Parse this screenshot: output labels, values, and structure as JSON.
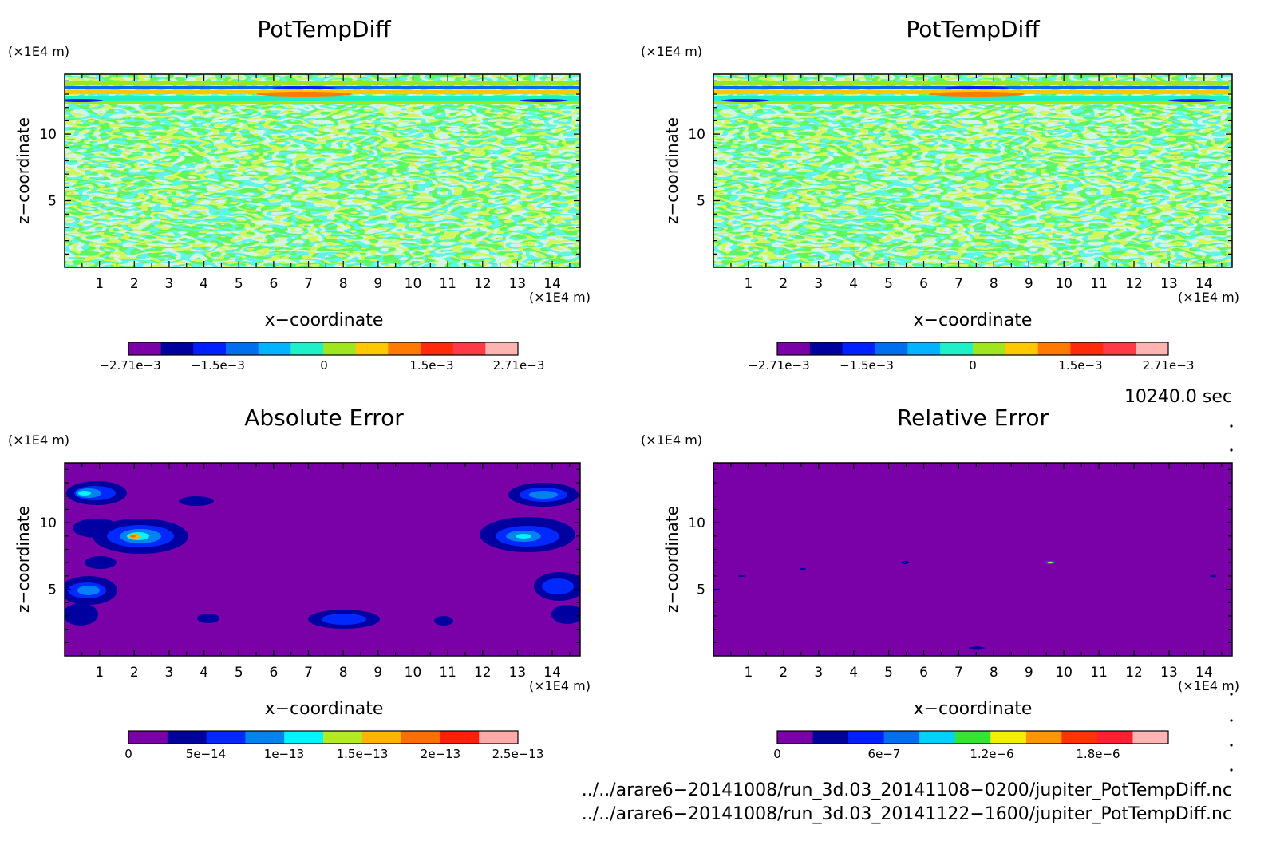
{
  "colors": {
    "field_levels": [
      "#7a00a8",
      "#00009e",
      "#0020ff",
      "#006ef0",
      "#00b4ff",
      "#1ef0c8",
      "#a0e61e",
      "#ffc800",
      "#ff7a00",
      "#ff2a0a",
      "#ff3a46",
      "#ffb4b4"
    ],
    "abs_levels": [
      "#7a00a8",
      "#0000a0",
      "#0028ff",
      "#0082f0",
      "#00f5ff",
      "#b4eb1e",
      "#ffb400",
      "#ff6e00",
      "#ff1e0a",
      "#ffaaaa"
    ],
    "rel_levels": [
      "#7a00a8",
      "#00009e",
      "#0020ff",
      "#006ef0",
      "#00d2ff",
      "#32e632",
      "#f0f000",
      "#ff9600",
      "#ff3200",
      "#ff1e32",
      "#ffb4b4"
    ]
  },
  "chart_data": [
    {
      "type": "heatmap",
      "title": "PotTempDiff",
      "xlabel": "x−coordinate",
      "ylabel": "z−coordinate",
      "x_unit": "(×1E4 m)",
      "y_unit": "(×1E4 m)",
      "x_ticks": [
        "1",
        "2",
        "3",
        "4",
        "5",
        "6",
        "7",
        "8",
        "9",
        "10",
        "11",
        "12",
        "13",
        "14"
      ],
      "y_ticks": [
        "5",
        "10"
      ],
      "xlim": [
        0,
        14.8
      ],
      "ylim": [
        0,
        14.5
      ],
      "colorbar_ticks": [
        "−2.71e−3",
        "−1.5e−3",
        "0",
        "1.5e−3",
        "2.71e−3"
      ],
      "colorbar_range": [
        -0.00271,
        0.00271
      ]
    },
    {
      "type": "heatmap",
      "title": "PotTempDiff",
      "xlabel": "x−coordinate",
      "ylabel": "z−coordinate",
      "x_unit": "(×1E4 m)",
      "y_unit": "(×1E4 m)",
      "x_ticks": [
        "1",
        "2",
        "3",
        "4",
        "5",
        "6",
        "7",
        "8",
        "9",
        "10",
        "11",
        "12",
        "13",
        "14"
      ],
      "y_ticks": [
        "5",
        "10"
      ],
      "xlim": [
        0,
        14.8
      ],
      "ylim": [
        0,
        14.5
      ],
      "colorbar_ticks": [
        "−2.71e−3",
        "−1.5e−3",
        "0",
        "1.5e−3",
        "2.71e−3"
      ],
      "colorbar_range": [
        -0.00271,
        0.00271
      ]
    },
    {
      "type": "heatmap",
      "title": "Absolute Error",
      "xlabel": "x−coordinate",
      "ylabel": "z−coordinate",
      "x_unit": "(×1E4 m)",
      "y_unit": "(×1E4 m)",
      "x_ticks": [
        "1",
        "2",
        "3",
        "4",
        "5",
        "6",
        "7",
        "8",
        "9",
        "10",
        "11",
        "12",
        "13",
        "14"
      ],
      "y_ticks": [
        "5",
        "10"
      ],
      "xlim": [
        0,
        14.8
      ],
      "ylim": [
        0,
        14.5
      ],
      "colorbar_ticks": [
        "0",
        "5e−14",
        "1e−13",
        "1.5e−13",
        "2e−13",
        "2.5e−13"
      ],
      "colorbar_range": [
        0,
        2.5e-13
      ]
    },
    {
      "type": "heatmap",
      "title": "Relative Error",
      "xlabel": "x−coordinate",
      "ylabel": "z−coordinate",
      "x_unit": "(×1E4 m)",
      "y_unit": "(×1E4 m)",
      "x_ticks": [
        "1",
        "2",
        "3",
        "4",
        "5",
        "6",
        "7",
        "8",
        "9",
        "10",
        "11",
        "12",
        "13",
        "14"
      ],
      "y_ticks": [
        "5",
        "10"
      ],
      "xlim": [
        0,
        14.8
      ],
      "ylim": [
        0,
        14.5
      ],
      "colorbar_ticks": [
        "0",
        "6e−7",
        "1.2e−6",
        "1.8e−6"
      ],
      "colorbar_range": [
        0,
        2.2e-06
      ]
    }
  ],
  "time_label": "10240.0 sec",
  "file_paths": [
    "../../arare6−20141008/run_3d.03_20141108−0200/jupiter_PotTempDiff.nc",
    "../../arare6−20141008/run_3d.03_20141122−1600/jupiter_PotTempDiff.nc"
  ]
}
